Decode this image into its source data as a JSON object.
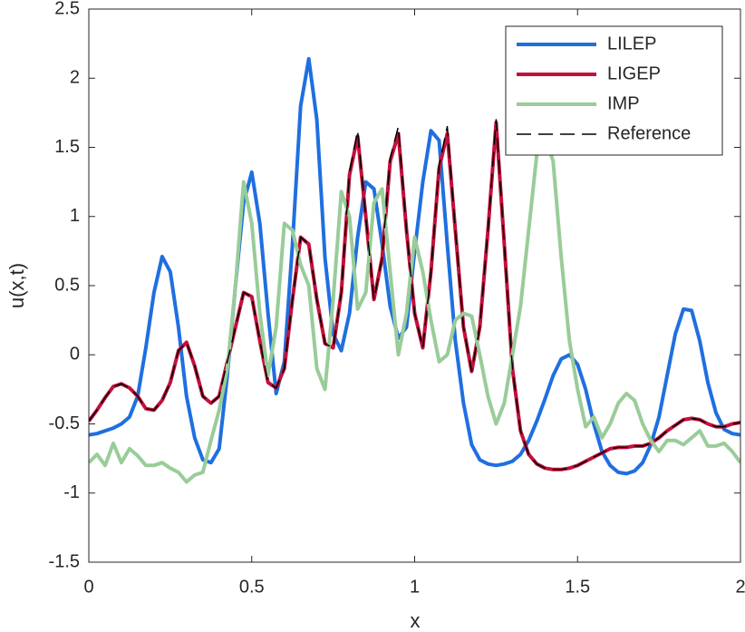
{
  "chart_data": {
    "type": "line",
    "xlabel": "x",
    "ylabel": "u(x,t)",
    "xlim": [
      0,
      2
    ],
    "ylim": [
      -1.5,
      2.5
    ],
    "xticks": [
      0,
      0.5,
      1,
      1.5,
      2
    ],
    "yticks": [
      -1.5,
      -1,
      -0.5,
      0,
      0.5,
      1,
      1.5,
      2,
      2.5
    ],
    "legend": "top-right",
    "x": [
      0,
      0.025,
      0.05,
      0.075,
      0.1,
      0.125,
      0.15,
      0.175,
      0.2,
      0.225,
      0.25,
      0.275,
      0.3,
      0.325,
      0.35,
      0.375,
      0.4,
      0.425,
      0.45,
      0.475,
      0.5,
      0.525,
      0.55,
      0.575,
      0.6,
      0.625,
      0.65,
      0.675,
      0.7,
      0.725,
      0.75,
      0.775,
      0.8,
      0.825,
      0.85,
      0.875,
      0.9,
      0.925,
      0.95,
      0.975,
      1,
      1.025,
      1.05,
      1.075,
      1.1,
      1.125,
      1.15,
      1.175,
      1.2,
      1.225,
      1.25,
      1.275,
      1.3,
      1.325,
      1.35,
      1.375,
      1.4,
      1.425,
      1.45,
      1.475,
      1.5,
      1.525,
      1.55,
      1.575,
      1.6,
      1.625,
      1.65,
      1.675,
      1.7,
      1.725,
      1.75,
      1.775,
      1.8,
      1.825,
      1.85,
      1.875,
      1.9,
      1.925,
      1.95,
      1.975,
      2
    ],
    "series": [
      {
        "name": "LILEP",
        "color": "#1f6fe0",
        "width": 4,
        "values": [
          -0.58,
          -0.57,
          -0.55,
          -0.53,
          -0.5,
          -0.45,
          -0.3,
          0.05,
          0.45,
          0.71,
          0.6,
          0.2,
          -0.3,
          -0.6,
          -0.76,
          -0.78,
          -0.68,
          -0.15,
          0.5,
          1.1,
          1.32,
          0.95,
          0.3,
          -0.28,
          -0.05,
          0.8,
          1.8,
          2.14,
          1.7,
          0.7,
          0.15,
          0.03,
          0.3,
          0.85,
          1.25,
          1.2,
          0.8,
          0.35,
          0.12,
          0.2,
          0.75,
          1.25,
          1.62,
          1.55,
          0.8,
          0.1,
          -0.35,
          -0.65,
          -0.76,
          -0.79,
          -0.8,
          -0.79,
          -0.77,
          -0.72,
          -0.62,
          -0.48,
          -0.32,
          -0.15,
          -0.03,
          0,
          -0.07,
          -0.25,
          -0.5,
          -0.7,
          -0.8,
          -0.85,
          -0.86,
          -0.84,
          -0.78,
          -0.65,
          -0.45,
          -0.15,
          0.15,
          0.33,
          0.32,
          0.1,
          -0.2,
          -0.42,
          -0.54,
          -0.57,
          -0.58
        ]
      },
      {
        "name": "LIGEP",
        "color": "#c4103c",
        "width": 4,
        "values": [
          -0.48,
          -0.4,
          -0.31,
          -0.23,
          -0.21,
          -0.24,
          -0.3,
          -0.39,
          -0.4,
          -0.33,
          -0.2,
          0.03,
          0.09,
          -0.08,
          -0.3,
          -0.35,
          -0.3,
          -0.05,
          0.2,
          0.45,
          0.42,
          0.1,
          -0.2,
          -0.24,
          -0.1,
          0.4,
          0.85,
          0.8,
          0.4,
          0.08,
          0.05,
          0.45,
          1.3,
          1.58,
          1,
          0.4,
          0.7,
          1.4,
          1.6,
          0.9,
          0.3,
          0.05,
          0.6,
          1.35,
          1.6,
          0.9,
          0.2,
          -0.12,
          0.2,
          0.9,
          1.68,
          0.8,
          -0.1,
          -0.55,
          -0.72,
          -0.79,
          -0.82,
          -0.83,
          -0.83,
          -0.82,
          -0.8,
          -0.77,
          -0.74,
          -0.71,
          -0.68,
          -0.67,
          -0.67,
          -0.66,
          -0.66,
          -0.64,
          -0.6,
          -0.55,
          -0.51,
          -0.47,
          -0.46,
          -0.47,
          -0.5,
          -0.52,
          -0.52,
          -0.5,
          -0.49
        ]
      },
      {
        "name": "IMP",
        "color": "#99cc99",
        "width": 4,
        "values": [
          -0.78,
          -0.72,
          -0.8,
          -0.64,
          -0.78,
          -0.68,
          -0.73,
          -0.8,
          -0.8,
          -0.78,
          -0.82,
          -0.85,
          -0.92,
          -0.87,
          -0.85,
          -0.62,
          -0.4,
          -0.1,
          0.5,
          1.25,
          0.95,
          0.3,
          -0.15,
          0.2,
          0.95,
          0.9,
          0.65,
          0.5,
          -0.1,
          -0.25,
          0.4,
          1.18,
          1,
          0.33,
          0.45,
          1.1,
          1.2,
          0.6,
          0,
          0.3,
          0.85,
          0.6,
          0.25,
          -0.05,
          0,
          0.25,
          0.3,
          0.28,
          0,
          -0.3,
          -0.5,
          -0.35,
          0,
          0.35,
          0.9,
          1.45,
          1.58,
          1.4,
          0.7,
          0.1,
          -0.25,
          -0.52,
          -0.45,
          -0.6,
          -0.5,
          -0.35,
          -0.28,
          -0.33,
          -0.5,
          -0.62,
          -0.7,
          -0.62,
          -0.62,
          -0.65,
          -0.6,
          -0.55,
          -0.66,
          -0.66,
          -0.64,
          -0.7,
          -0.78
        ]
      },
      {
        "name": "Reference",
        "color": "#000000",
        "width": 1.5,
        "dashed": true,
        "values": [
          -0.48,
          -0.4,
          -0.31,
          -0.23,
          -0.21,
          -0.24,
          -0.3,
          -0.39,
          -0.4,
          -0.33,
          -0.2,
          0.03,
          0.09,
          -0.08,
          -0.3,
          -0.35,
          -0.3,
          -0.05,
          0.2,
          0.45,
          0.42,
          0.1,
          -0.2,
          -0.24,
          -0.1,
          0.4,
          0.85,
          0.8,
          0.4,
          0.08,
          0.05,
          0.45,
          1.32,
          1.62,
          1,
          0.4,
          0.7,
          1.42,
          1.65,
          0.9,
          0.3,
          0.05,
          0.6,
          1.37,
          1.65,
          0.9,
          0.2,
          -0.12,
          0.2,
          0.9,
          1.7,
          0.8,
          -0.1,
          -0.55,
          -0.72,
          -0.79,
          -0.82,
          -0.83,
          -0.83,
          -0.82,
          -0.8,
          -0.77,
          -0.74,
          -0.71,
          -0.68,
          -0.67,
          -0.67,
          -0.66,
          -0.66,
          -0.64,
          -0.6,
          -0.55,
          -0.51,
          -0.47,
          -0.46,
          -0.47,
          -0.5,
          -0.52,
          -0.52,
          -0.5,
          -0.49
        ]
      }
    ]
  }
}
